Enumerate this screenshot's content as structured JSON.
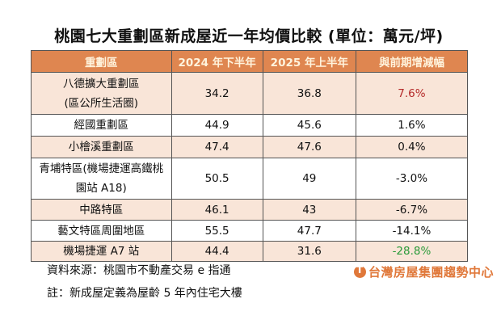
{
  "title": "桃園七大重劃區新成屋近一年均價比較  (單位：萬元/坪)",
  "table": {
    "headers": [
      "重劃區",
      "2024 年下半年",
      "2025 年上半年",
      "與前期增減幅"
    ],
    "rows": [
      {
        "name": [
          "八德擴大重劃區",
          "(區公所生活圈)"
        ],
        "h2024": "34.2",
        "h2025": "36.8",
        "change": "7.6%",
        "tone": "red"
      },
      {
        "name": [
          "經國重劃區"
        ],
        "h2024": "44.9",
        "h2025": "45.6",
        "change": "1.6%",
        "tone": ""
      },
      {
        "name": [
          "小檜溪重劃區"
        ],
        "h2024": "47.4",
        "h2025": "47.6",
        "change": "0.4%",
        "tone": ""
      },
      {
        "name": [
          "青埔特區(機場捷運高鐵桃",
          "園站 A18)"
        ],
        "h2024": "50.5",
        "h2025": "49",
        "change": "-3.0%",
        "tone": ""
      },
      {
        "name": [
          "中路特區"
        ],
        "h2024": "46.1",
        "h2025": "43",
        "change": "-6.7%",
        "tone": ""
      },
      {
        "name": [
          "藝文特區周圍地區"
        ],
        "h2024": "55.5",
        "h2025": "47.7",
        "change": "-14.1%",
        "tone": ""
      },
      {
        "name": [
          "機場捷運 A7 站"
        ],
        "h2024": "44.4",
        "h2025": "31.6",
        "change": "-28.8%",
        "tone": "green"
      }
    ]
  },
  "colors": {
    "header_bg": "#df8650",
    "odd_row_bg": "#f9e5d8",
    "increase_highlight": "#b42828",
    "decrease_highlight": "#2a9a3a"
  },
  "footer": {
    "source": "資料來源：桃園市不動產交易 e 指通",
    "note": "註：新成屋定義為屋齡 5 年內住宅大樓",
    "logo_text": "台灣房屋集團趨勢中心"
  }
}
